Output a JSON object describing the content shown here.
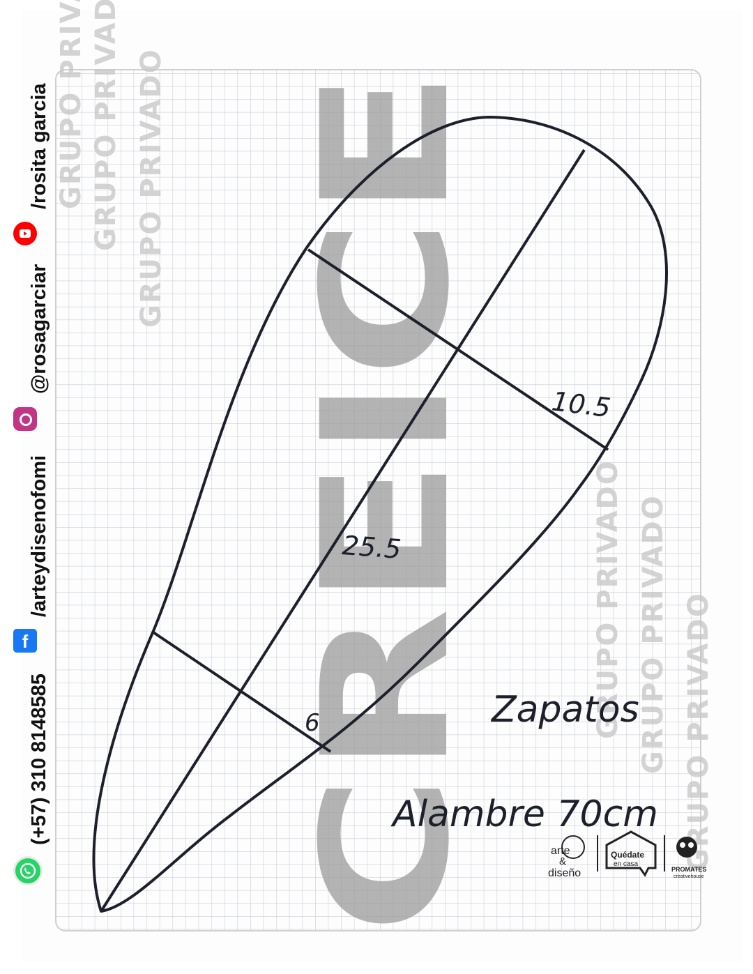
{
  "contact": {
    "phone": "(+57) 310 8148585",
    "facebook": "/arteydisenofomi",
    "instagram": "@rosagarciar",
    "youtube": "/rosita garcia"
  },
  "icons": [
    "whatsapp-icon",
    "facebook-icon",
    "instagram-icon",
    "youtube-icon"
  ],
  "watermark": {
    "main": "CREICE",
    "secondary": "GRUPO PRIVADO"
  },
  "pattern": {
    "length_label": "25.5",
    "top_width_label": "10.5",
    "bottom_width_label": "6",
    "title": "Zapatos",
    "wire_note": "Alambre 70cm"
  },
  "logos": {
    "arte_line1": "arte",
    "arte_line2": "&",
    "arte_line3": "diseño",
    "quedate_line1": "Quédate",
    "quedate_line2": "en casa",
    "promates_line1": "PROMATES",
    "promates_line2": "creativehouse"
  },
  "colors": {
    "grid_line": "#c9ced6",
    "ink": "#1d1f2a",
    "watermark": "#9a9a9a",
    "whatsapp": "#25d366",
    "facebook": "#1877f2",
    "instagram": "#c13584",
    "youtube": "#ff0000"
  }
}
